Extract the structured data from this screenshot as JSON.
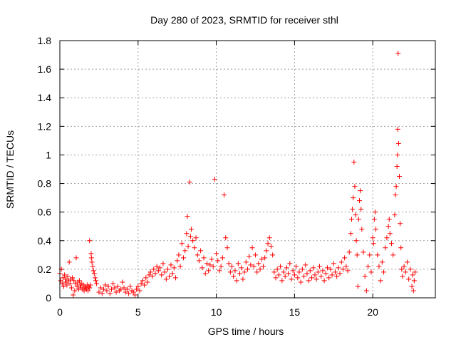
{
  "chart_data": {
    "type": "scatter",
    "title": "Day 280 of 2023, SRMTID for receiver sthl",
    "xlabel": "GPS time / hours",
    "ylabel": "SRMTID / TECUs",
    "xlim": [
      0,
      24
    ],
    "ylim": [
      0,
      1.8
    ],
    "x_ticks": [
      0,
      5,
      10,
      15,
      20
    ],
    "x_tick_labels": [
      "0",
      "5",
      "10",
      "15",
      "20"
    ],
    "y_ticks": [
      0,
      0.2,
      0.4,
      0.6,
      0.8,
      1,
      1.2,
      1.4,
      1.6,
      1.8
    ],
    "y_tick_labels": [
      "0",
      "0.2",
      "0.4",
      "0.6",
      "0.8",
      "1",
      "1.2",
      "1.4",
      "1.6",
      "1.8"
    ],
    "grid": true,
    "marker": "+",
    "color": "#ff0000",
    "series": [
      {
        "name": "SRMTID",
        "points": [
          [
            0.0,
            0.17
          ],
          [
            0.05,
            0.12
          ],
          [
            0.1,
            0.2
          ],
          [
            0.15,
            0.1
          ],
          [
            0.2,
            0.14
          ],
          [
            0.25,
            0.08
          ],
          [
            0.3,
            0.16
          ],
          [
            0.35,
            0.11
          ],
          [
            0.4,
            0.13
          ],
          [
            0.45,
            0.09
          ],
          [
            0.5,
            0.15
          ],
          [
            0.55,
            0.12
          ],
          [
            0.6,
            0.25
          ],
          [
            0.65,
            0.1
          ],
          [
            0.7,
            0.13
          ],
          [
            0.75,
            0.07
          ],
          [
            0.8,
            0.14
          ],
          [
            0.85,
            0.02
          ],
          [
            0.9,
            0.12
          ],
          [
            0.95,
            0.05
          ],
          [
            1.0,
            0.1
          ],
          [
            1.05,
            0.28
          ],
          [
            1.1,
            0.08
          ],
          [
            1.15,
            0.11
          ],
          [
            1.2,
            0.06
          ],
          [
            1.25,
            0.12
          ],
          [
            1.3,
            0.09
          ],
          [
            1.35,
            0.07
          ],
          [
            1.4,
            0.1
          ],
          [
            1.45,
            0.06
          ],
          [
            1.5,
            0.09
          ],
          [
            1.55,
            0.05
          ],
          [
            1.6,
            0.08
          ],
          [
            1.65,
            0.07
          ],
          [
            1.7,
            0.06
          ],
          [
            1.75,
            0.09
          ],
          [
            1.8,
            0.05
          ],
          [
            1.85,
            0.08
          ],
          [
            1.9,
            0.07
          ],
          [
            1.95,
            0.09
          ],
          [
            1.9,
            0.4
          ],
          [
            2.0,
            0.31
          ],
          [
            2.02,
            0.28
          ],
          [
            2.05,
            0.25
          ],
          [
            2.1,
            0.22
          ],
          [
            2.15,
            0.19
          ],
          [
            2.2,
            0.17
          ],
          [
            2.25,
            0.14
          ],
          [
            2.3,
            0.12
          ],
          [
            2.35,
            0.1
          ],
          [
            2.5,
            0.04
          ],
          [
            2.6,
            0.07
          ],
          [
            2.7,
            0.03
          ],
          [
            2.8,
            0.06
          ],
          [
            2.9,
            0.09
          ],
          [
            3.0,
            0.05
          ],
          [
            3.1,
            0.08
          ],
          [
            3.2,
            0.03
          ],
          [
            3.3,
            0.06
          ],
          [
            3.4,
            0.1
          ],
          [
            3.5,
            0.07
          ],
          [
            3.6,
            0.04
          ],
          [
            3.7,
            0.08
          ],
          [
            3.8,
            0.05
          ],
          [
            3.9,
            0.06
          ],
          [
            4.0,
            0.11
          ],
          [
            4.1,
            0.07
          ],
          [
            4.2,
            0.04
          ],
          [
            4.3,
            0.06
          ],
          [
            4.4,
            0.03
          ],
          [
            4.5,
            0.08
          ],
          [
            4.6,
            0.05
          ],
          [
            4.7,
            0.04
          ],
          [
            4.8,
            0.02
          ],
          [
            4.9,
            0.06
          ],
          [
            5.0,
            0.08
          ],
          [
            5.1,
            0.05
          ],
          [
            5.2,
            0.1
          ],
          [
            5.3,
            0.12
          ],
          [
            5.4,
            0.09
          ],
          [
            5.5,
            0.14
          ],
          [
            5.6,
            0.11
          ],
          [
            5.7,
            0.16
          ],
          [
            5.8,
            0.18
          ],
          [
            5.9,
            0.15
          ],
          [
            6.0,
            0.2
          ],
          [
            6.1,
            0.17
          ],
          [
            6.2,
            0.22
          ],
          [
            6.3,
            0.19
          ],
          [
            6.4,
            0.21
          ],
          [
            6.5,
            0.16
          ],
          [
            6.6,
            0.24
          ],
          [
            6.7,
            0.18
          ],
          [
            6.8,
            0.13
          ],
          [
            6.9,
            0.2
          ],
          [
            7.0,
            0.15
          ],
          [
            7.1,
            0.23
          ],
          [
            7.2,
            0.17
          ],
          [
            7.3,
            0.21
          ],
          [
            7.4,
            0.14
          ],
          [
            7.5,
            0.26
          ],
          [
            7.6,
            0.3
          ],
          [
            7.7,
            0.22
          ],
          [
            7.8,
            0.38
          ],
          [
            7.9,
            0.28
          ],
          [
            8.0,
            0.33
          ],
          [
            8.1,
            0.45
          ],
          [
            8.15,
            0.57
          ],
          [
            8.2,
            0.36
          ],
          [
            8.3,
            0.81
          ],
          [
            8.35,
            0.43
          ],
          [
            8.4,
            0.48
          ],
          [
            8.5,
            0.4
          ],
          [
            8.6,
            0.35
          ],
          [
            8.7,
            0.42
          ],
          [
            8.8,
            0.3
          ],
          [
            8.9,
            0.26
          ],
          [
            9.0,
            0.33
          ],
          [
            9.1,
            0.21
          ],
          [
            9.2,
            0.28
          ],
          [
            9.3,
            0.17
          ],
          [
            9.4,
            0.24
          ],
          [
            9.5,
            0.19
          ],
          [
            9.6,
            0.23
          ],
          [
            9.7,
            0.27
          ],
          [
            9.8,
            0.22
          ],
          [
            9.9,
            0.83
          ],
          [
            10.0,
            0.31
          ],
          [
            10.1,
            0.26
          ],
          [
            10.2,
            0.19
          ],
          [
            10.3,
            0.22
          ],
          [
            10.4,
            0.28
          ],
          [
            10.5,
            0.72
          ],
          [
            10.6,
            0.42
          ],
          [
            10.7,
            0.35
          ],
          [
            10.8,
            0.24
          ],
          [
            10.9,
            0.18
          ],
          [
            11.0,
            0.22
          ],
          [
            11.1,
            0.15
          ],
          [
            11.2,
            0.19
          ],
          [
            11.3,
            0.12
          ],
          [
            11.4,
            0.24
          ],
          [
            11.5,
            0.17
          ],
          [
            11.6,
            0.21
          ],
          [
            11.7,
            0.13
          ],
          [
            11.8,
            0.18
          ],
          [
            11.9,
            0.25
          ],
          [
            12.0,
            0.2
          ],
          [
            12.1,
            0.29
          ],
          [
            12.2,
            0.23
          ],
          [
            12.3,
            0.35
          ],
          [
            12.4,
            0.22
          ],
          [
            12.5,
            0.3
          ],
          [
            12.6,
            0.18
          ],
          [
            12.7,
            0.24
          ],
          [
            12.8,
            0.2
          ],
          [
            12.9,
            0.27
          ],
          [
            13.0,
            0.22
          ],
          [
            13.1,
            0.28
          ],
          [
            13.2,
            0.33
          ],
          [
            13.3,
            0.38
          ],
          [
            13.4,
            0.42
          ],
          [
            13.5,
            0.36
          ],
          [
            13.6,
            0.3
          ],
          [
            13.7,
            0.18
          ],
          [
            13.8,
            0.14
          ],
          [
            13.9,
            0.2
          ],
          [
            14.0,
            0.16
          ],
          [
            14.1,
            0.22
          ],
          [
            14.2,
            0.12
          ],
          [
            14.3,
            0.18
          ],
          [
            14.4,
            0.15
          ],
          [
            14.5,
            0.21
          ],
          [
            14.6,
            0.17
          ],
          [
            14.7,
            0.24
          ],
          [
            14.8,
            0.13
          ],
          [
            14.9,
            0.19
          ],
          [
            15.0,
            0.16
          ],
          [
            15.1,
            0.22
          ],
          [
            15.2,
            0.14
          ],
          [
            15.3,
            0.18
          ],
          [
            15.4,
            0.11
          ],
          [
            15.5,
            0.2
          ],
          [
            15.6,
            0.15
          ],
          [
            15.7,
            0.23
          ],
          [
            15.8,
            0.17
          ],
          [
            15.9,
            0.12
          ],
          [
            16.0,
            0.19
          ],
          [
            16.1,
            0.14
          ],
          [
            16.2,
            0.21
          ],
          [
            16.3,
            0.16
          ],
          [
            16.4,
            0.13
          ],
          [
            16.5,
            0.18
          ],
          [
            16.6,
            0.22
          ],
          [
            16.7,
            0.15
          ],
          [
            16.8,
            0.19
          ],
          [
            16.9,
            0.12
          ],
          [
            17.0,
            0.17
          ],
          [
            17.1,
            0.21
          ],
          [
            17.2,
            0.14
          ],
          [
            17.3,
            0.2
          ],
          [
            17.4,
            0.16
          ],
          [
            17.5,
            0.24
          ],
          [
            17.6,
            0.18
          ],
          [
            17.7,
            0.15
          ],
          [
            17.8,
            0.21
          ],
          [
            17.9,
            0.17
          ],
          [
            18.0,
            0.25
          ],
          [
            18.1,
            0.2
          ],
          [
            18.2,
            0.28
          ],
          [
            18.3,
            0.22
          ],
          [
            18.4,
            0.19
          ],
          [
            18.5,
            0.32
          ],
          [
            18.6,
            0.45
          ],
          [
            18.65,
            0.55
          ],
          [
            18.7,
            0.62
          ],
          [
            18.75,
            0.7
          ],
          [
            18.8,
            0.95
          ],
          [
            18.85,
            0.78
          ],
          [
            18.9,
            0.58
          ],
          [
            18.95,
            0.4
          ],
          [
            19.0,
            0.3
          ],
          [
            19.05,
            0.08
          ],
          [
            19.1,
            0.55
          ],
          [
            19.15,
            0.68
          ],
          [
            19.2,
            0.75
          ],
          [
            19.25,
            0.62
          ],
          [
            19.3,
            0.48
          ],
          [
            19.4,
            0.32
          ],
          [
            19.5,
            0.15
          ],
          [
            19.6,
            0.05
          ],
          [
            19.7,
            0.22
          ],
          [
            19.8,
            0.3
          ],
          [
            19.9,
            0.18
          ],
          [
            20.0,
            0.42
          ],
          [
            20.05,
            0.38
          ],
          [
            20.1,
            0.55
          ],
          [
            20.15,
            0.6
          ],
          [
            20.2,
            0.48
          ],
          [
            20.3,
            0.3
          ],
          [
            20.4,
            0.22
          ],
          [
            20.5,
            0.12
          ],
          [
            20.6,
            0.25
          ],
          [
            20.7,
            0.18
          ],
          [
            20.8,
            0.35
          ],
          [
            20.9,
            0.42
          ],
          [
            21.0,
            0.5
          ],
          [
            21.05,
            0.55
          ],
          [
            21.1,
            0.45
          ],
          [
            21.2,
            0.38
          ],
          [
            21.3,
            0.3
          ],
          [
            21.4,
            0.58
          ],
          [
            21.45,
            0.72
          ],
          [
            21.5,
            0.78
          ],
          [
            21.55,
            0.92
          ],
          [
            21.58,
            1.0
          ],
          [
            21.6,
            1.18
          ],
          [
            21.62,
            1.71
          ],
          [
            21.65,
            1.08
          ],
          [
            21.7,
            0.85
          ],
          [
            21.75,
            0.52
          ],
          [
            21.8,
            0.35
          ],
          [
            21.85,
            0.2
          ],
          [
            21.9,
            0.15
          ],
          [
            22.0,
            0.22
          ],
          [
            22.1,
            0.18
          ],
          [
            22.2,
            0.25
          ],
          [
            22.3,
            0.13
          ],
          [
            22.4,
            0.2
          ],
          [
            22.5,
            0.08
          ],
          [
            22.55,
            0.16
          ],
          [
            22.6,
            0.05
          ],
          [
            22.65,
            0.12
          ],
          [
            22.7,
            0.18
          ]
        ]
      }
    ]
  }
}
